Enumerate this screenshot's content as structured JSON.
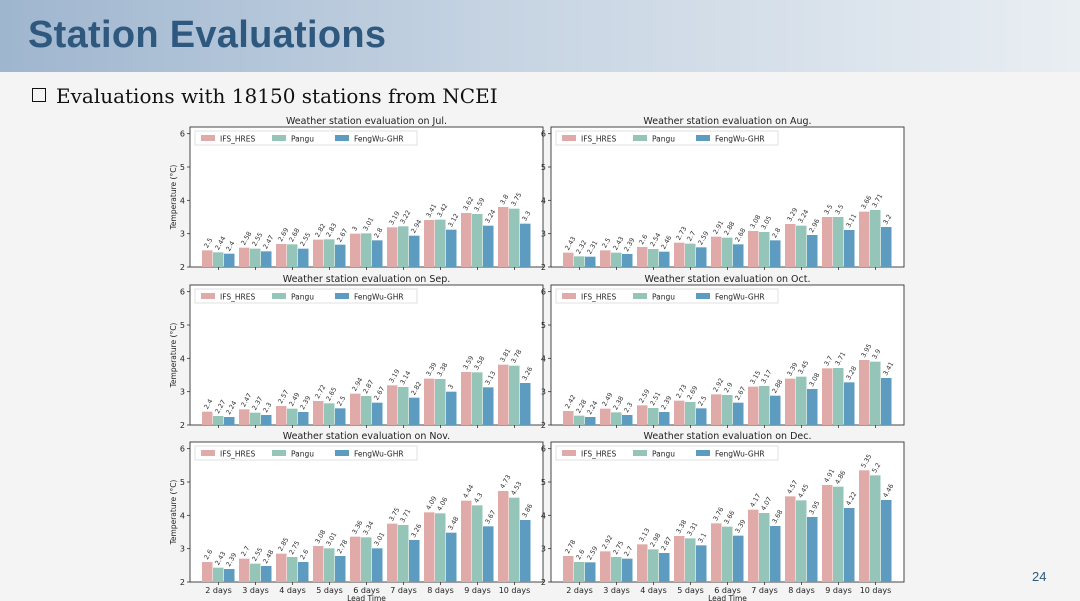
{
  "header": {
    "title": "Station Evaluations"
  },
  "bullet": {
    "text": "Evaluations with 18150 stations from NCEI"
  },
  "page_number": "24",
  "legend": [
    {
      "name": "IFS_HRES",
      "color": "#e0aaa8"
    },
    {
      "name": "Pangu",
      "color": "#94c5b8"
    },
    {
      "name": "FengWu-GHR",
      "color": "#5d9cc0"
    }
  ],
  "chart_data": [
    {
      "type": "bar",
      "title": "Weather station evaluation on Jul.",
      "categories": [
        "2 days",
        "3 days",
        "4 days",
        "5 days",
        "6 days",
        "7 days",
        "8 days",
        "9 days",
        "10 days"
      ],
      "series": [
        {
          "name": "IFS_HRES",
          "values": [
            2.5,
            2.58,
            2.69,
            2.82,
            3.0,
            3.19,
            3.41,
            3.62,
            3.8
          ]
        },
        {
          "name": "Pangu",
          "values": [
            2.44,
            2.55,
            2.68,
            2.83,
            3.01,
            3.22,
            3.42,
            3.59,
            3.75
          ]
        },
        {
          "name": "FengWu-GHR",
          "values": [
            2.4,
            2.47,
            2.55,
            2.67,
            2.8,
            2.94,
            3.12,
            3.24,
            3.3
          ]
        }
      ],
      "xlabel": "",
      "ylabel": "Temperature (°C)",
      "ylim": [
        2,
        6.2
      ],
      "yticks": [
        2,
        3,
        4,
        5,
        6
      ]
    },
    {
      "type": "bar",
      "title": "Weather station evaluation on Aug.",
      "categories": [
        "2 days",
        "3 days",
        "4 days",
        "5 days",
        "6 days",
        "7 days",
        "8 days",
        "9 days",
        "10 days"
      ],
      "series": [
        {
          "name": "IFS_HRES",
          "values": [
            2.43,
            2.5,
            2.6,
            2.73,
            2.91,
            3.08,
            3.29,
            3.5,
            3.66
          ]
        },
        {
          "name": "Pangu",
          "values": [
            2.32,
            2.43,
            2.54,
            2.7,
            2.88,
            3.05,
            3.24,
            3.5,
            3.71
          ]
        },
        {
          "name": "FengWu-GHR",
          "values": [
            2.31,
            2.39,
            2.46,
            2.59,
            2.68,
            2.8,
            2.96,
            3.11,
            3.2
          ]
        }
      ],
      "xlabel": "",
      "ylabel": "",
      "ylim": [
        2,
        6.2
      ],
      "yticks": [
        2,
        3,
        4,
        5,
        6
      ]
    },
    {
      "type": "bar",
      "title": "Weather station evaluation on Sep.",
      "categories": [
        "2 days",
        "3 days",
        "4 days",
        "5 days",
        "6 days",
        "7 days",
        "8 days",
        "9 days",
        "10 days"
      ],
      "series": [
        {
          "name": "IFS_HRES",
          "values": [
            2.4,
            2.47,
            2.57,
            2.72,
            2.94,
            3.19,
            3.39,
            3.59,
            3.81
          ]
        },
        {
          "name": "Pangu",
          "values": [
            2.27,
            2.37,
            2.49,
            2.65,
            2.87,
            3.14,
            3.38,
            3.58,
            3.78
          ]
        },
        {
          "name": "FengWu-GHR",
          "values": [
            2.24,
            2.3,
            2.39,
            2.5,
            2.67,
            2.82,
            3.0,
            3.13,
            3.26
          ]
        }
      ],
      "xlabel": "",
      "ylabel": "Temperature (°C)",
      "ylim": [
        2,
        6.2
      ],
      "yticks": [
        2,
        3,
        4,
        5,
        6
      ]
    },
    {
      "type": "bar",
      "title": "Weather station evaluation on Oct.",
      "categories": [
        "2 days",
        "3 days",
        "4 days",
        "5 days",
        "6 days",
        "7 days",
        "8 days",
        "9 days",
        "10 days"
      ],
      "series": [
        {
          "name": "IFS_HRES",
          "values": [
            2.42,
            2.49,
            2.59,
            2.73,
            2.92,
            3.15,
            3.39,
            3.7,
            3.95
          ]
        },
        {
          "name": "Pangu",
          "values": [
            2.28,
            2.38,
            2.51,
            2.69,
            2.9,
            3.17,
            3.45,
            3.71,
            3.9
          ]
        },
        {
          "name": "FengWu-GHR",
          "values": [
            2.24,
            2.3,
            2.39,
            2.5,
            2.67,
            2.88,
            3.08,
            3.28,
            3.41
          ]
        }
      ],
      "xlabel": "",
      "ylabel": "",
      "ylim": [
        2,
        6.2
      ],
      "yticks": [
        2,
        3,
        4,
        5,
        6
      ]
    },
    {
      "type": "bar",
      "title": "Weather station evaluation on Nov.",
      "categories": [
        "2 days",
        "3 days",
        "4 days",
        "5 days",
        "6 days",
        "7 days",
        "8 days",
        "9 days",
        "10 days"
      ],
      "series": [
        {
          "name": "IFS_HRES",
          "values": [
            2.6,
            2.7,
            2.85,
            3.08,
            3.36,
            3.75,
            4.09,
            4.44,
            4.73
          ]
        },
        {
          "name": "Pangu",
          "values": [
            2.43,
            2.55,
            2.75,
            3.01,
            3.34,
            3.71,
            4.06,
            4.3,
            4.53
          ]
        },
        {
          "name": "FengWu-GHR",
          "values": [
            2.39,
            2.48,
            2.6,
            2.78,
            3.01,
            3.26,
            3.48,
            3.67,
            3.86
          ]
        }
      ],
      "xlabel": "Lead Time",
      "ylabel": "Temperature (°C)",
      "ylim": [
        2,
        6.2
      ],
      "yticks": [
        2,
        3,
        4,
        5,
        6
      ]
    },
    {
      "type": "bar",
      "title": "Weather station evaluation on Dec.",
      "categories": [
        "2 days",
        "3 days",
        "4 days",
        "5 days",
        "6 days",
        "7 days",
        "8 days",
        "9 days",
        "10 days"
      ],
      "series": [
        {
          "name": "IFS_HRES",
          "values": [
            2.78,
            2.92,
            3.13,
            3.38,
            3.76,
            4.17,
            4.57,
            4.91,
            5.35
          ]
        },
        {
          "name": "Pangu",
          "values": [
            2.6,
            2.75,
            2.98,
            3.31,
            3.66,
            4.07,
            4.45,
            4.86,
            5.2
          ]
        },
        {
          "name": "FengWu-GHR",
          "values": [
            2.59,
            2.7,
            2.87,
            3.1,
            3.39,
            3.68,
            3.95,
            4.22,
            4.46
          ]
        }
      ],
      "xlabel": "Lead Time",
      "ylabel": "",
      "ylim": [
        2,
        6.2
      ],
      "yticks": [
        2,
        3,
        4,
        5,
        6
      ]
    }
  ]
}
